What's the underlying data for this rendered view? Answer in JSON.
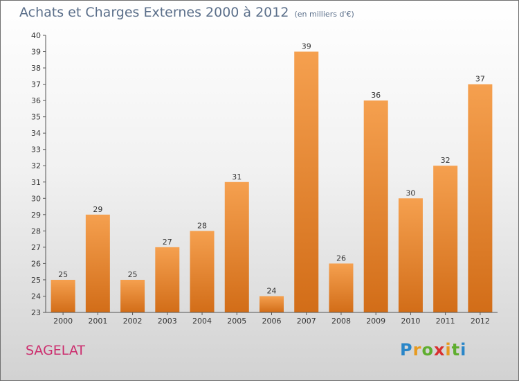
{
  "header": {
    "title": "Achats et Charges Externes 2000 à 2012",
    "unit_note": "(en milliers d'€)"
  },
  "footer": {
    "place": "SAGELAT",
    "logo": {
      "letters": [
        "P",
        "r",
        "o",
        "x",
        "i",
        "t",
        "i"
      ],
      "colors": [
        "#2a86c8",
        "#e79a1f",
        "#5fae2f",
        "#d8302f",
        "#e79a1f",
        "#5fae2f",
        "#2a86c8"
      ]
    }
  },
  "chart_data": {
    "type": "bar",
    "title": "Achats et Charges Externes 2000 à 2012",
    "subtitle": "(en milliers d'€)",
    "categories": [
      "2000",
      "2001",
      "2002",
      "2003",
      "2004",
      "2005",
      "2006",
      "2007",
      "2008",
      "2009",
      "2010",
      "2011",
      "2012"
    ],
    "values": [
      25,
      29,
      25,
      27,
      28,
      31,
      24,
      39,
      26,
      36,
      30,
      32,
      37
    ],
    "ylim": [
      23,
      40
    ],
    "yticks": [
      23,
      24,
      25,
      26,
      27,
      28,
      29,
      30,
      31,
      32,
      33,
      34,
      35,
      36,
      37,
      38,
      39,
      40
    ],
    "grid": false,
    "bar_color_top": "#f5a04f",
    "bar_color_bottom": "#d26d18"
  }
}
